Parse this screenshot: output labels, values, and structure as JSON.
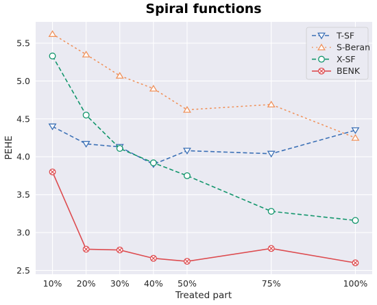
{
  "chart_data": {
    "type": "line",
    "title": "Spiral functions",
    "xlabel": "Treated part",
    "ylabel": "PEHE",
    "x": [
      10,
      20,
      30,
      40,
      50,
      75,
      100
    ],
    "x_tick_labels": [
      "10%",
      "20%",
      "30%",
      "40%",
      "50%",
      "75%",
      "100%"
    ],
    "y_ticks": [
      2.5,
      3.0,
      3.5,
      4.0,
      4.5,
      5.0,
      5.5
    ],
    "y_tick_labels": [
      "2.5",
      "3.0",
      "3.5",
      "4.0",
      "4.5",
      "5.0",
      "5.5"
    ],
    "xlim": [
      5,
      105
    ],
    "ylim": [
      2.45,
      5.78
    ],
    "grid": true,
    "legend_position": "top-right",
    "series": [
      {
        "name": "T-SF",
        "color": "#3a6fb5",
        "marker": "triangle-down",
        "linestyle": "dashed",
        "values": [
          4.4,
          4.17,
          4.13,
          3.9,
          4.08,
          4.04,
          4.35
        ]
      },
      {
        "name": "S-Beran",
        "color": "#f0915a",
        "marker": "triangle-up",
        "linestyle": "dotted",
        "values": [
          5.62,
          5.35,
          5.07,
          4.9,
          4.62,
          4.69,
          4.25
        ]
      },
      {
        "name": "X-SF",
        "color": "#11956b",
        "marker": "circle",
        "linestyle": "dashed",
        "values": [
          5.33,
          4.55,
          4.11,
          3.92,
          3.75,
          3.28,
          3.16
        ]
      },
      {
        "name": "BENK",
        "color": "#dd4b4f",
        "marker": "x-circle",
        "linestyle": "solid",
        "values": [
          3.8,
          2.78,
          2.77,
          2.66,
          2.62,
          2.79,
          2.6
        ]
      }
    ]
  }
}
